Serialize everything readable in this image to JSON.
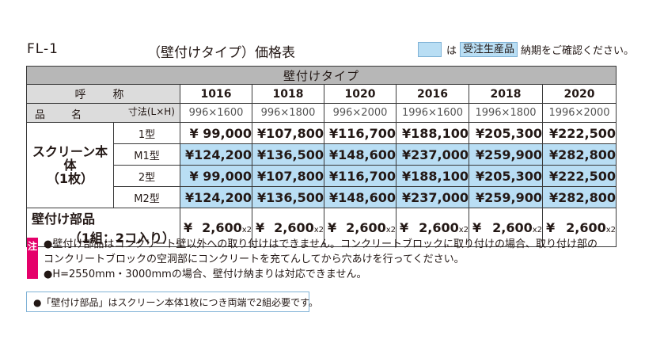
{
  "header": {
    "model": "FL-1",
    "title": "（壁付けタイプ）価格表",
    "note_is": "は",
    "note_tag": "受注生産品",
    "note_tail": "納期をご確認ください。"
  },
  "table": {
    "band_title": "壁付けタイプ",
    "yobi_label": "呼　称",
    "size_label": "寸法(L×H)",
    "name_label": "品　名",
    "codes": [
      "1016",
      "1018",
      "1020",
      "2016",
      "2018",
      "2020"
    ],
    "sizes": [
      "996×1600",
      "996×1800",
      "996×2000",
      "1996×1600",
      "1996×1800",
      "1996×2000"
    ],
    "group_name": "スクリーン本体\n（1枚）",
    "rows": [
      {
        "type": "1型",
        "prices": [
          "¥ 99,000",
          "¥107,800",
          "¥116,700",
          "¥188,100",
          "¥205,300",
          "¥222,500"
        ]
      },
      {
        "type": "M1型",
        "prices": [
          "¥124,200",
          "¥136,500",
          "¥148,600",
          "¥237,000",
          "¥259,900",
          "¥282,800"
        ]
      },
      {
        "type": "2型",
        "prices": [
          "¥ 99,000",
          "¥107,800",
          "¥116,700",
          "¥188,100",
          "¥205,300",
          "¥222,500"
        ]
      },
      {
        "type": "M2型",
        "prices": [
          "¥124,200",
          "¥136,500",
          "¥148,600",
          "¥237,000",
          "¥259,900",
          "¥282,800"
        ]
      }
    ],
    "parts": {
      "label": "壁付け部品",
      "qty": "（1組：2コ入り）",
      "yen": "¥",
      "price": "2,600",
      "mult": "x2"
    }
  },
  "notes": {
    "badge": "注",
    "line1": "●壁付け部品はコンクリート壁以外への取り付けはできません。コンクリートブロックに取り付けの場合、取り付け部の",
    "line2": "コンクリートブロックの空洞部にコンクリートを充てんしてから穴あけを行ってください。",
    "line3": "●H=2550mm・3000mmの場合、壁付け納まりは対応できません。"
  },
  "bottom_note": "●「壁付け部品」はスクリーン本体1枚につき両端で2組必要です。",
  "colors": {
    "highlight": "#b9def4",
    "caution": "#e5006a",
    "header_gray": "#b7b7b7"
  }
}
